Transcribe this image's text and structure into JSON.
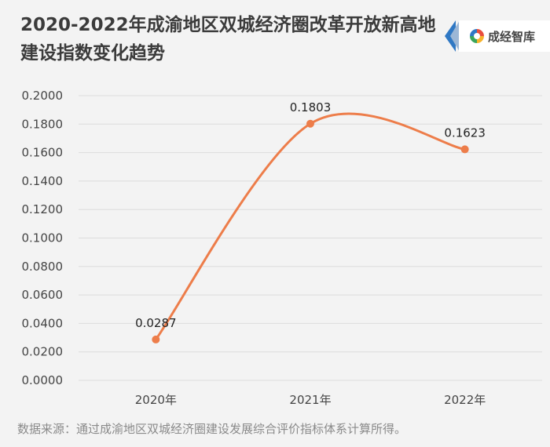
{
  "title": {
    "line1": "2020-2022年成渝地区双城经济圈改革开放新高地",
    "line2": "建设指数变化趋势"
  },
  "logo": {
    "text": "成经智库"
  },
  "source": "数据来源：通过成渝地区双城经济圈建设发展综合评价指标体系计算所得。",
  "colors": {
    "line": "#ed7d4a",
    "grid": "#dcdcdc",
    "background": "#f3f3f3"
  },
  "chart_data": {
    "type": "line",
    "smooth": true,
    "categories": [
      "2020年",
      "2021年",
      "2022年"
    ],
    "values": [
      0.0287,
      0.1803,
      0.1623
    ],
    "data_labels": [
      "0.0287",
      "0.1803",
      "0.1623"
    ],
    "yticks": [
      "0.0000",
      "0.0200",
      "0.0400",
      "0.0600",
      "0.0800",
      "0.1000",
      "0.1200",
      "0.1400",
      "0.1600",
      "0.1800",
      "0.2000"
    ],
    "ylim": [
      0,
      0.2
    ],
    "xlabel": "",
    "ylabel": "",
    "grid": true,
    "legend": "none"
  }
}
